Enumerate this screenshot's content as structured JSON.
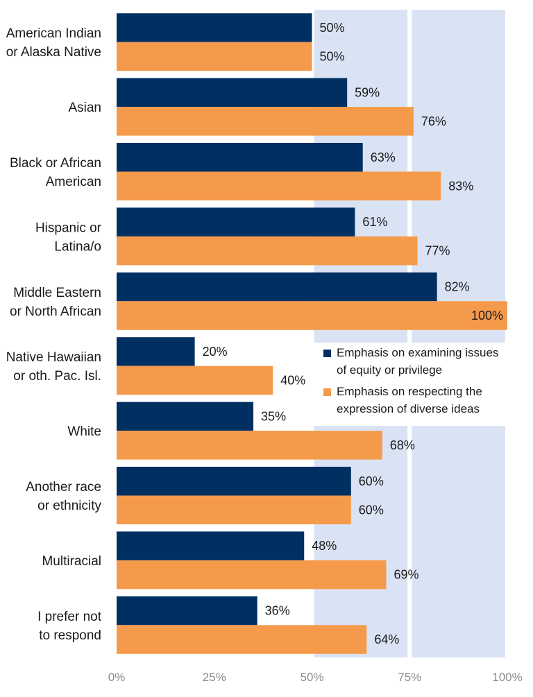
{
  "colors": {
    "series1": "#002f62",
    "series2": "#f59a4b",
    "band": "#dae3f4",
    "grid": "#ffffff"
  },
  "chart_data": {
    "type": "bar",
    "orientation": "horizontal",
    "categories": [
      [
        "American Indian",
        "or Alaska Native"
      ],
      [
        "Asian"
      ],
      [
        "Black or African",
        "American"
      ],
      [
        "Hispanic or",
        "Latina/o"
      ],
      [
        "Middle Eastern",
        "or North African"
      ],
      [
        "Native Hawaiian",
        "or oth. Pac. Isl."
      ],
      [
        "White"
      ],
      [
        "Another race",
        "or ethnicity"
      ],
      [
        "Multiracial"
      ],
      [
        "I prefer not",
        "to respond"
      ]
    ],
    "series": [
      {
        "name_lines": [
          "Emphasis on examining issues",
          "of equity or privilege"
        ],
        "values": [
          50,
          59,
          63,
          61,
          82,
          20,
          35,
          60,
          48,
          36
        ],
        "labels": [
          "50%",
          "59%",
          "63%",
          "61%",
          "82%",
          "20%",
          "35%",
          "60%",
          "48%",
          "36%"
        ]
      },
      {
        "name_lines": [
          "Emphasis on respecting the",
          "expression of diverse ideas"
        ],
        "values": [
          50,
          76,
          83,
          77,
          100,
          40,
          68,
          60,
          69,
          64
        ],
        "labels": [
          "50%",
          "76%",
          "83%",
          "77%",
          "100%",
          "40%",
          "68%",
          "60%",
          "69%",
          "64%"
        ]
      }
    ],
    "xlim": [
      0,
      100
    ],
    "xticks": [
      0,
      25,
      50,
      75,
      100
    ],
    "xtick_labels": [
      "0%",
      "25%",
      "50%",
      "75%",
      "100%"
    ],
    "shaded_bands": [
      [
        50,
        75
      ],
      [
        75,
        100
      ]
    ],
    "legend_position": "right-middle"
  }
}
